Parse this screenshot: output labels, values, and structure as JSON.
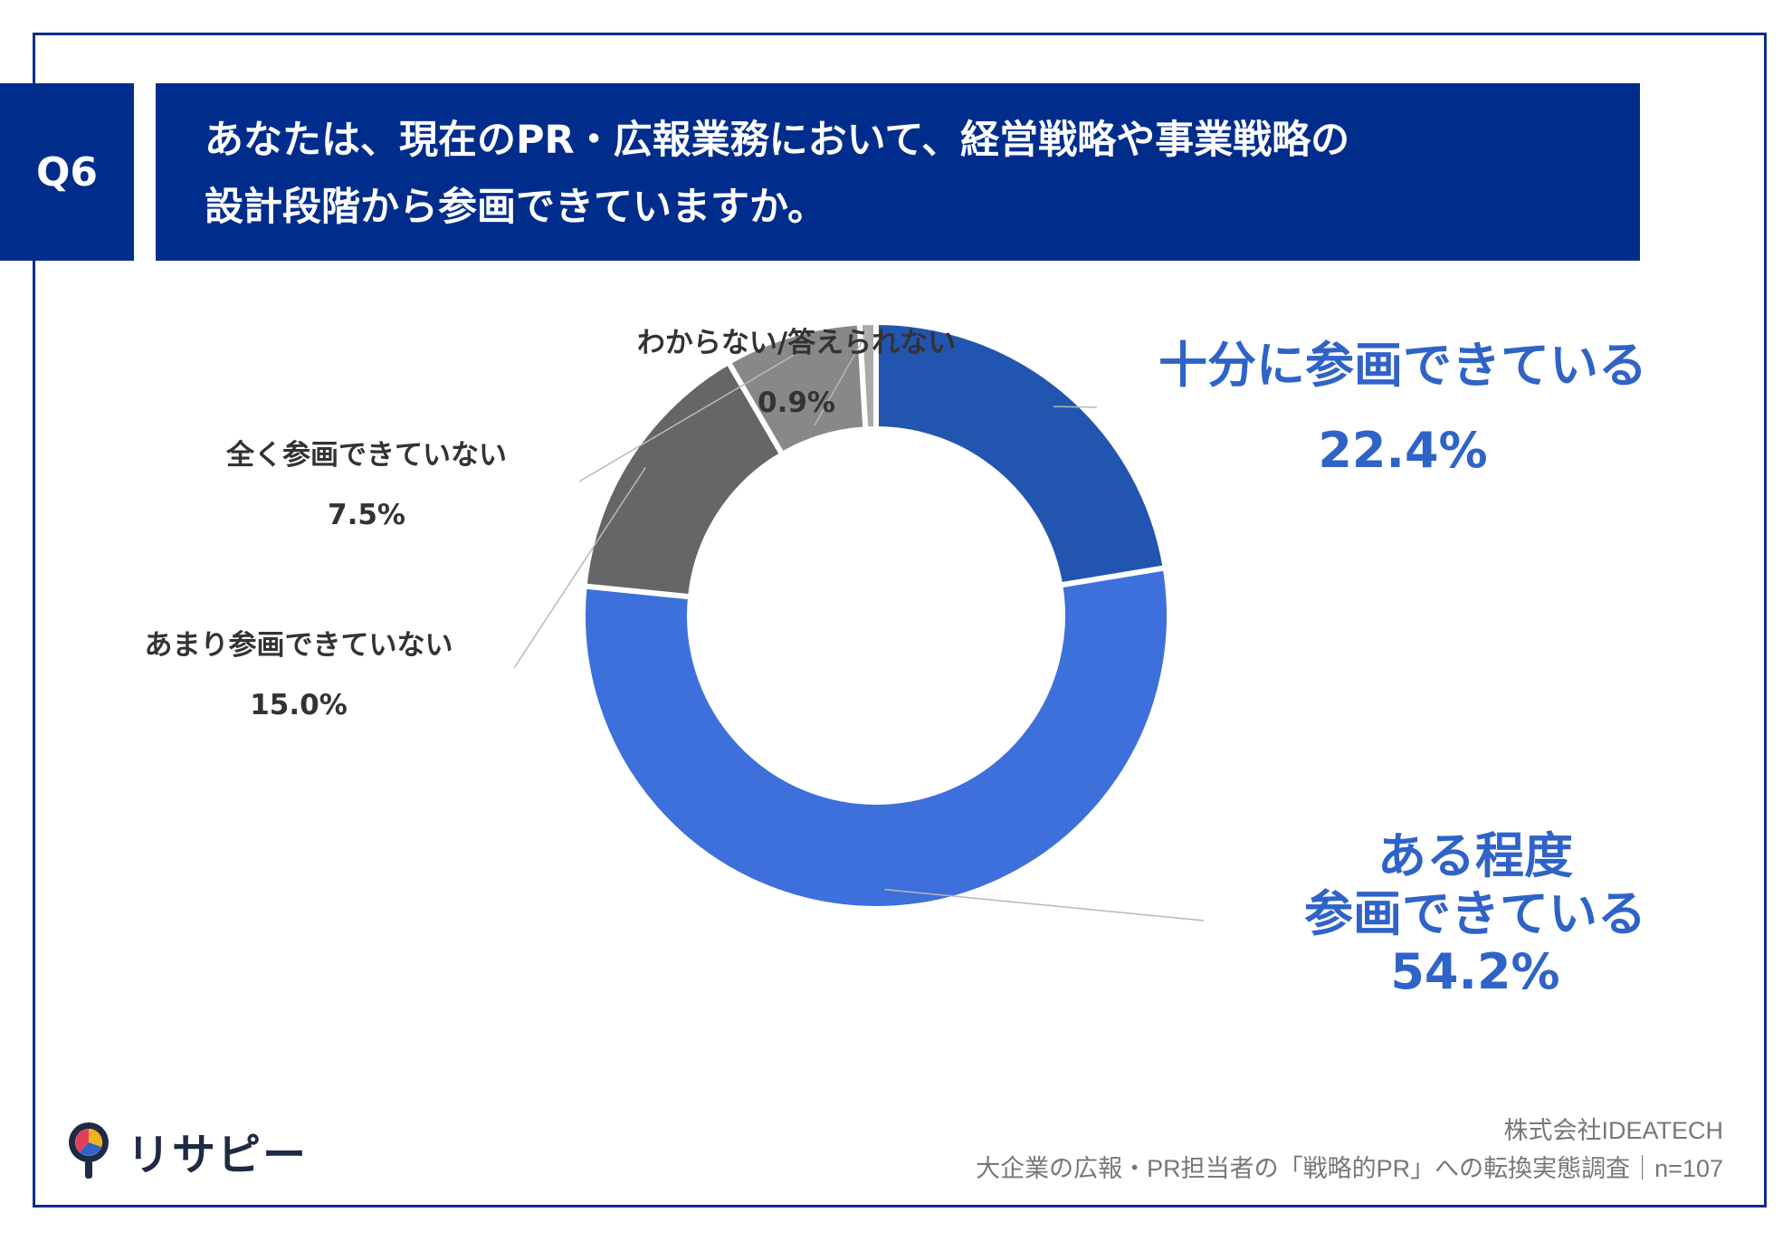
{
  "header": {
    "question_label": "Q6",
    "title_line1": "あなたは、現在のPR・広報業務において、経営戦略や事業戦略の",
    "title_line2": "設計段階から参画できていますか。"
  },
  "chart_data": {
    "type": "pie",
    "donut": true,
    "slices": [
      {
        "label": "十分に参画できている",
        "value": 22.4,
        "value_label": "22.4%",
        "color": "#2255b0"
      },
      {
        "label_lines": [
          "ある程度",
          "参画できている"
        ],
        "value": 54.2,
        "value_label": "54.2%",
        "color": "#3e70dc"
      },
      {
        "label": "あまり参画できていない",
        "value": 15.0,
        "value_label": "15.0%",
        "color": "#666666"
      },
      {
        "label": "全く参画できていない",
        "value": 7.5,
        "value_label": "7.5%",
        "color": "#888888"
      },
      {
        "label": "わからない/答えられない",
        "value": 0.9,
        "value_label": "0.9%",
        "color": "#aaaaaa"
      }
    ]
  },
  "logo": {
    "text": "リサピー"
  },
  "source": {
    "company": "株式会社IDEATECH",
    "survey": "大企業の広報・PR担当者の「戦略的PR」への転換実態調査｜n=107"
  }
}
